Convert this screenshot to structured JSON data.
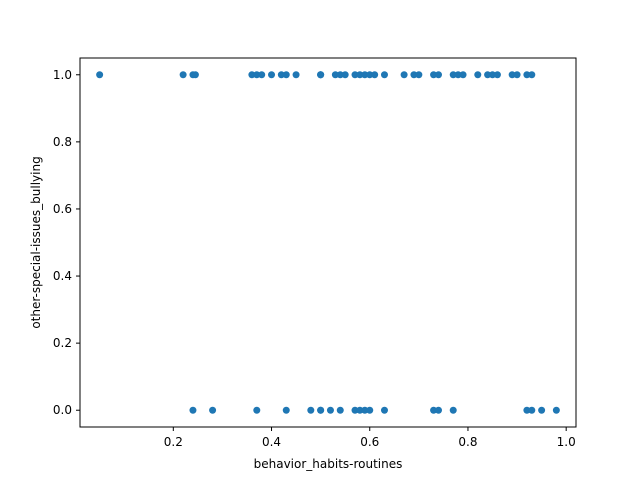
{
  "chart_data": {
    "type": "scatter",
    "xlabel": "behavior_habits-routines",
    "ylabel": "other-special-issues_bullying",
    "xlim": [
      0.01,
      1.02
    ],
    "ylim": [
      -0.05,
      1.05
    ],
    "xticks": [
      0.2,
      0.4,
      0.6,
      0.8,
      1.0
    ],
    "xtick_labels": [
      "0.2",
      "0.4",
      "0.6",
      "0.8",
      "1.0"
    ],
    "yticks": [
      0.0,
      0.2,
      0.4,
      0.6,
      0.8,
      1.0
    ],
    "ytick_labels": [
      "0.0",
      "0.2",
      "0.4",
      "0.6",
      "0.8",
      "1.0"
    ],
    "grid": false,
    "marker_color": "#1f77b4",
    "series": [
      {
        "x": [
          0.05,
          0.22,
          0.24,
          0.245,
          0.36,
          0.37,
          0.38,
          0.4,
          0.42,
          0.43,
          0.45,
          0.5,
          0.5,
          0.5,
          0.53,
          0.54,
          0.55,
          0.57,
          0.58,
          0.59,
          0.6,
          0.61,
          0.63,
          0.67,
          0.69,
          0.7,
          0.73,
          0.74,
          0.77,
          0.78,
          0.79,
          0.82,
          0.84,
          0.85,
          0.86,
          0.89,
          0.9,
          0.92,
          0.93,
          0.24,
          0.28,
          0.37,
          0.43,
          0.48,
          0.5,
          0.5,
          0.52,
          0.54,
          0.57,
          0.58,
          0.59,
          0.6,
          0.63,
          0.73,
          0.74,
          0.77,
          0.92,
          0.93,
          0.95,
          0.98
        ],
        "y": [
          1,
          1,
          1,
          1,
          1,
          1,
          1,
          1,
          1,
          1,
          1,
          1,
          1,
          1,
          1,
          1,
          1,
          1,
          1,
          1,
          1,
          1,
          1,
          1,
          1,
          1,
          1,
          1,
          1,
          1,
          1,
          1,
          1,
          1,
          1,
          1,
          1,
          1,
          1,
          0,
          0,
          0,
          0,
          0,
          0,
          0,
          0,
          0,
          0,
          0,
          0,
          0,
          0,
          0,
          0,
          0,
          0,
          0,
          0,
          0
        ]
      }
    ]
  }
}
